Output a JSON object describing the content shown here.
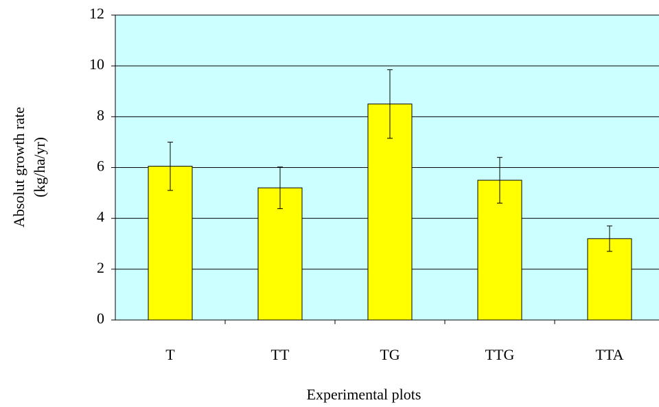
{
  "chart_data": {
    "type": "bar",
    "x_label": "Experimental plots",
    "y_label": [
      "Absolut growth rate",
      "(kg/ha/yr)"
    ],
    "categories": [
      "T",
      "TT",
      "TG",
      "TTG",
      "TTA"
    ],
    "values": [
      6.05,
      5.2,
      8.5,
      5.5,
      3.2
    ],
    "errors": [
      0.95,
      0.82,
      1.35,
      0.9,
      0.5
    ],
    "color": "#ffff00",
    "background": "#ccffff",
    "ylim": [
      0,
      12
    ],
    "yticks": [
      0,
      2,
      4,
      6,
      8,
      10,
      12
    ],
    "grid": true
  }
}
